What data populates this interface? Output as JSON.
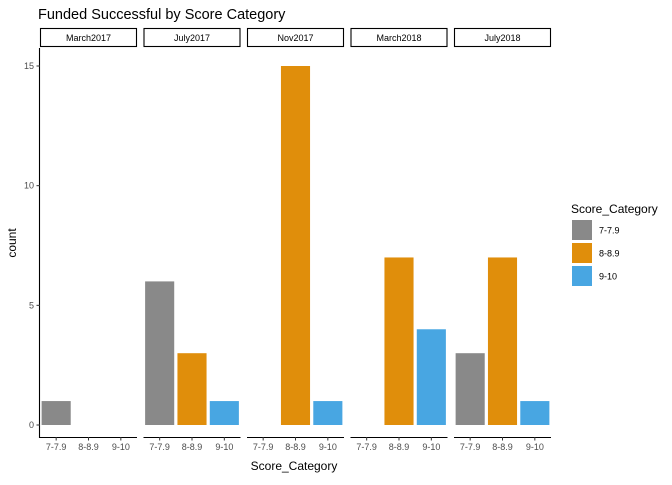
{
  "chart_data": {
    "type": "bar",
    "title": "Funded Successful by Score Category",
    "xlabel": "Score_Category",
    "ylabel": "count",
    "ylim": [
      0,
      16.75
    ],
    "yticks": [
      0,
      5,
      10,
      15
    ],
    "categories": [
      "7-7.9",
      "8-8.9",
      "9-10"
    ],
    "legend": {
      "title": "Score_Category",
      "position": "right",
      "entries": [
        {
          "label": "7-7.9",
          "color": "#898989"
        },
        {
          "label": "8-8.9",
          "color": "#E08E0B"
        },
        {
          "label": "9-10",
          "color": "#48A6E2"
        }
      ]
    },
    "grid": false,
    "panels": [
      {
        "name": "March2017",
        "values": [
          1,
          0,
          0
        ]
      },
      {
        "name": "July2017",
        "values": [
          6,
          3,
          1
        ]
      },
      {
        "name": "Nov2017",
        "values": [
          0,
          15,
          1
        ]
      },
      {
        "name": "March2018",
        "values": [
          0,
          7,
          4
        ]
      },
      {
        "name": "July2018",
        "values": [
          3,
          7,
          1
        ]
      }
    ]
  }
}
